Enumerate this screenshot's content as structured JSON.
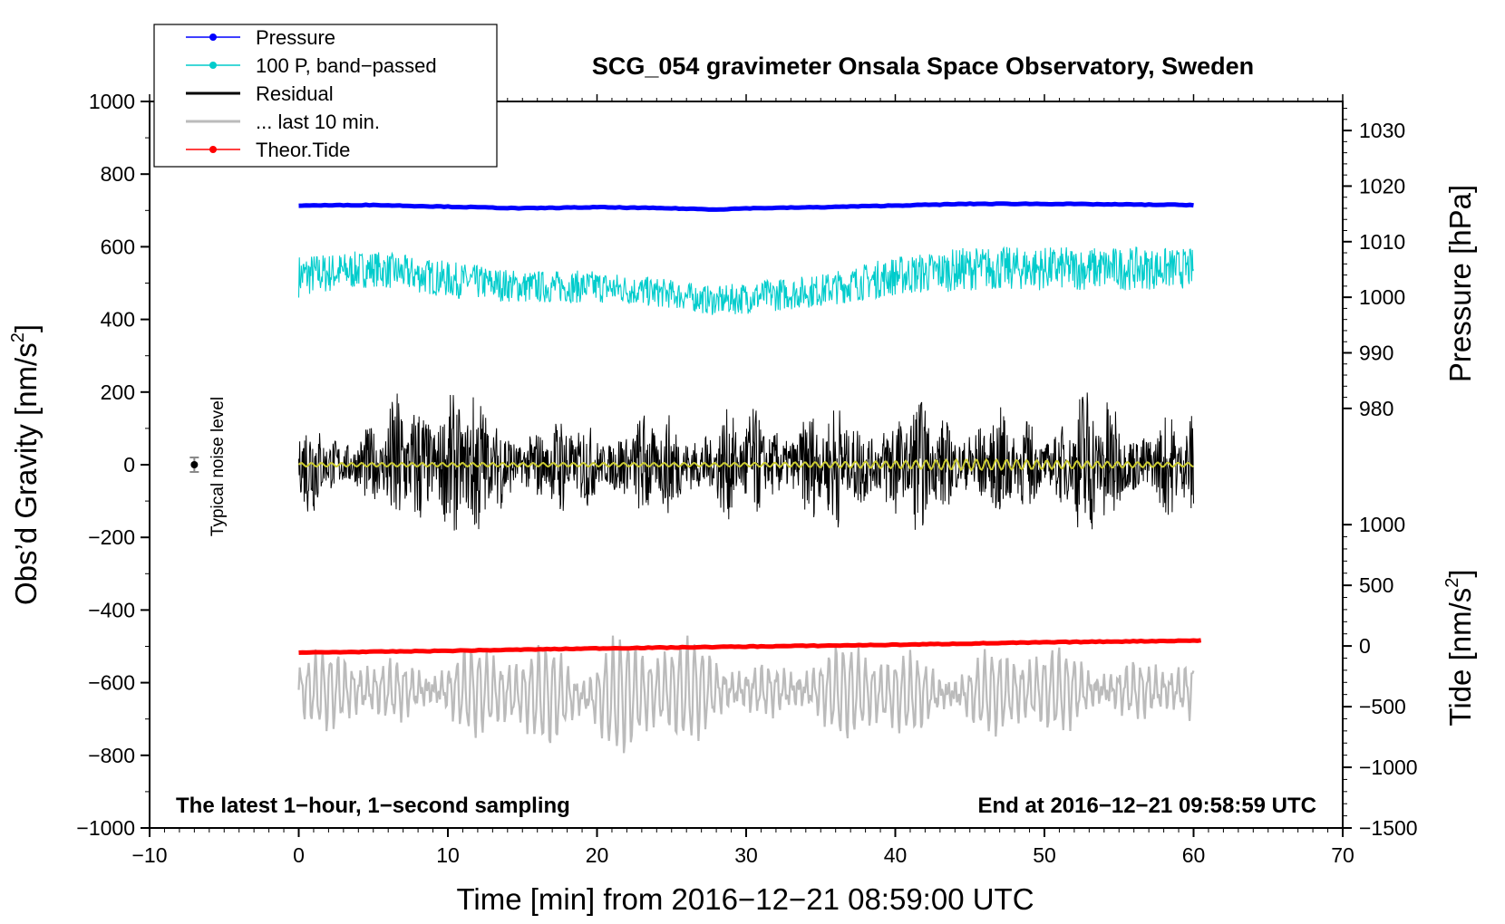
{
  "chart_data": {
    "type": "line",
    "title": "SCG_054 gravimeter Onsala Space Observatory, Sweden",
    "xlabel": "Time [min] from 2016−12−21 08:59:00 UTC",
    "ylabel_left": "Obs’d Gravity [nm/s²]",
    "ylabel_left_main": "Obs’d Gravity [nm/s",
    "ylabel_left_sup": "2",
    "ylabel_left_end": "]",
    "ylabel_right_top": "Pressure [hPa]",
    "ylabel_right_bottom": "Tide [nm/s²]",
    "ylabel_right_bottom_main": "Tide [nm/s",
    "ylabel_right_bottom_sup": "2",
    "ylabel_right_bottom_end": "]",
    "xlim": [
      -10,
      70
    ],
    "ylim_left": [
      -1000,
      1000
    ],
    "x_ticks": [
      -10,
      0,
      10,
      20,
      30,
      40,
      50,
      60,
      70
    ],
    "x_tick_labels": [
      "−10",
      "0",
      "10",
      "20",
      "30",
      "40",
      "50",
      "60",
      "70"
    ],
    "y_left_ticks": [
      1000,
      800,
      600,
      400,
      200,
      0,
      -200,
      -400,
      -600,
      -800,
      -1000
    ],
    "y_left_tick_labels": [
      "1000",
      "800",
      "600",
      "400",
      "200",
      "0",
      "−200",
      "−400",
      "−600",
      "−800",
      "−1000"
    ],
    "pressure_axis": {
      "ticks": [
        1030,
        1020,
        1010,
        1000,
        990,
        980
      ],
      "tick_labels": [
        "1030",
        "1020",
        "1010",
        "1000",
        "990",
        "980"
      ],
      "mapping": {
        "value_a": 1030,
        "gravity_a": 920,
        "value_b": 980,
        "gravity_b": 155
      }
    },
    "tide_axis": {
      "ticks": [
        1000,
        500,
        0,
        -500,
        -1000,
        -1500
      ],
      "tick_labels": [
        "1000",
        "500",
        "0",
        "−500",
        "−1000",
        "−1500"
      ],
      "mapping": {
        "value_a": 1000,
        "gravity_a": -165,
        "value_b": -1500,
        "gravity_b": -1000
      }
    },
    "legend": {
      "placement": "top-left",
      "entries": [
        {
          "label": "Pressure",
          "color": "#0000ff",
          "marker": true
        },
        {
          "label": "100 P, band−passed",
          "color": "#00cccc",
          "marker": true
        },
        {
          "label": "Residual",
          "color": "#000000",
          "marker": false
        },
        {
          "label": "... last 10 min.",
          "color": "#bbbbbb",
          "marker": false
        },
        {
          "label": "Theor.Tide",
          "color": "#ff0000",
          "marker": true
        }
      ]
    },
    "annotations": {
      "left_bottom": "The latest 1−hour, 1−second sampling",
      "right_bottom": "End at 2016−12−21 09:58:59 UTC",
      "noise_label": "Typical noise level"
    },
    "noise_bar": {
      "x": -7,
      "y": 0,
      "err": 20
    },
    "series": [
      {
        "name": "Pressure",
        "axis": "pressure",
        "color": "#0000ff",
        "x": [
          0,
          5,
          10,
          15,
          20,
          25,
          28,
          30,
          35,
          40,
          45,
          50,
          55,
          60
        ],
        "y": [
          1016.5,
          1016.6,
          1016.3,
          1016.0,
          1016.2,
          1016.0,
          1015.8,
          1016.0,
          1016.2,
          1016.5,
          1016.8,
          1016.8,
          1016.7,
          1016.6
        ]
      },
      {
        "name": "100 P, band−passed",
        "axis": "gravity",
        "color": "#00cccc",
        "x": [
          0,
          5,
          10,
          15,
          20,
          25,
          28,
          30,
          35,
          40,
          45,
          50,
          55,
          60
        ],
        "y": [
          520,
          540,
          510,
          490,
          490,
          470,
          450,
          460,
          480,
          520,
          540,
          540,
          540,
          540
        ],
        "amplitude": [
          60,
          50,
          50,
          45,
          45,
          40,
          40,
          45,
          45,
          55,
          60,
          60,
          60,
          55
        ]
      },
      {
        "name": "Residual",
        "axis": "gravity",
        "color": "#000000",
        "x": [
          0,
          5,
          8,
          10,
          15,
          20,
          25,
          30,
          35,
          40,
          45,
          50,
          53,
          55,
          60
        ],
        "y": [
          0,
          0,
          0,
          0,
          0,
          0,
          0,
          0,
          0,
          0,
          0,
          0,
          0,
          0,
          0
        ],
        "amplitude": [
          160,
          120,
          300,
          260,
          140,
          150,
          160,
          170,
          180,
          200,
          170,
          150,
          260,
          180,
          150
        ]
      },
      {
        "name": "Smoothed residual",
        "axis": "gravity",
        "color": "#cccc33",
        "x": [
          0,
          10,
          20,
          30,
          40,
          45,
          50,
          55,
          60
        ],
        "y": [
          0,
          0,
          0,
          0,
          0,
          0,
          0,
          0,
          0
        ],
        "amplitude": [
          5,
          5,
          5,
          5,
          10,
          15,
          12,
          8,
          5
        ]
      },
      {
        "name": "... last 10 min.",
        "axis": "gravity",
        "color": "#bbbbbb",
        "x": [
          0,
          5,
          10,
          15,
          20,
          25,
          30,
          35,
          40,
          45,
          50,
          55,
          60
        ],
        "y": [
          -620,
          -620,
          -620,
          -630,
          -640,
          -620,
          -620,
          -620,
          -630,
          -630,
          -620,
          -620,
          -620
        ],
        "amplitude": [
          90,
          110,
          130,
          110,
          270,
          140,
          100,
          110,
          140,
          140,
          110,
          120,
          90
        ]
      },
      {
        "name": "Theor.Tide",
        "axis": "tide",
        "color": "#ff0000",
        "x": [
          0,
          10,
          20,
          30,
          40,
          50,
          60.5
        ],
        "y": [
          -55,
          -40,
          -20,
          -5,
          10,
          30,
          45
        ]
      }
    ]
  }
}
